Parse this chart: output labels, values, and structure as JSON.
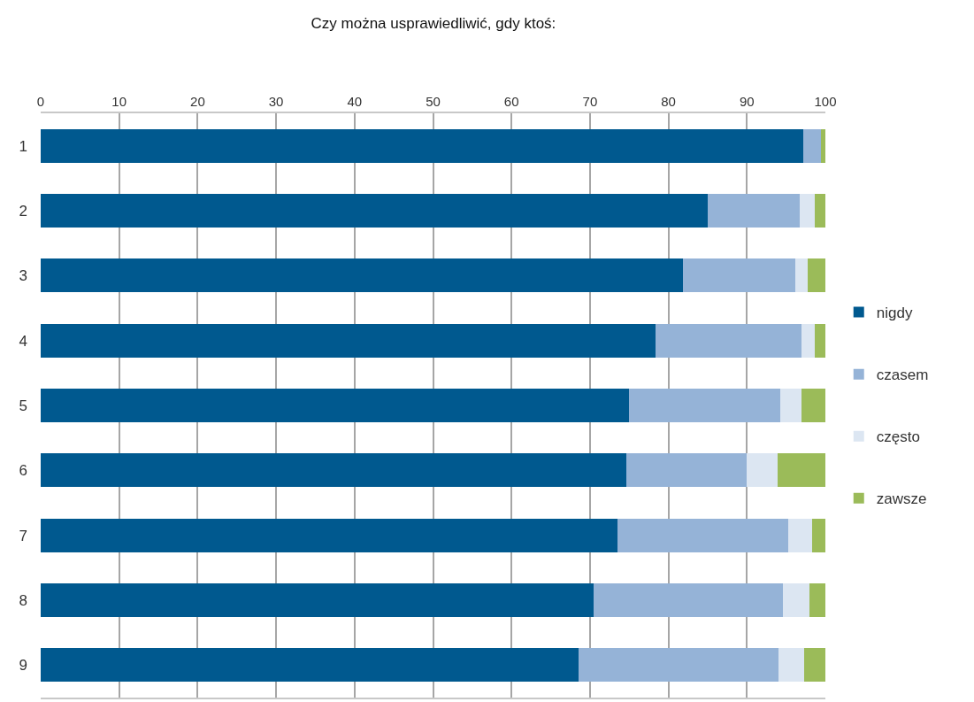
{
  "chart_data": {
    "type": "bar",
    "orientation": "horizontal",
    "stacked": true,
    "title": "Czy można usprawiedliwić, gdy ktoś:",
    "categories": [
      "1",
      "2",
      "3",
      "4",
      "5",
      "6",
      "7",
      "8",
      "9"
    ],
    "series": [
      {
        "name": "nigdy",
        "color": "#00598f",
        "values": [
          97.2,
          85.0,
          81.9,
          78.4,
          75.0,
          74.6,
          73.5,
          70.5,
          68.5
        ]
      },
      {
        "name": "czasem",
        "color": "#95b3d7",
        "values": [
          2.2,
          11.7,
          14.3,
          18.6,
          19.3,
          15.4,
          21.8,
          24.1,
          25.5
        ]
      },
      {
        "name": "często",
        "color": "#dce6f2",
        "values": [
          0,
          2.0,
          1.5,
          1.6,
          2.6,
          3.9,
          3.0,
          3.4,
          3.3
        ]
      },
      {
        "name": "zawsze",
        "color": "#9bbb59",
        "values": [
          0.6,
          1.3,
          2.3,
          1.4,
          3.1,
          6.1,
          1.7,
          2.0,
          2.7
        ]
      }
    ],
    "xlim": [
      0,
      100
    ],
    "xticks": [
      0,
      10,
      20,
      30,
      40,
      50,
      60,
      70,
      80,
      90,
      100
    ],
    "grid": "x",
    "legend": "right"
  }
}
